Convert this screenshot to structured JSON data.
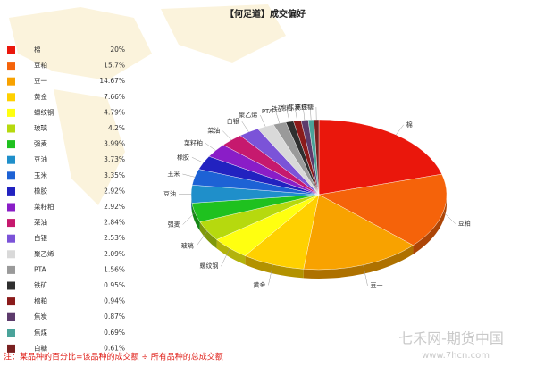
{
  "chart_data": {
    "type": "pie",
    "title": "【何足道】成交偏好",
    "categories": [
      "棉",
      "豆粕",
      "豆一",
      "黄金",
      "螺纹钢",
      "玻璃",
      "强麦",
      "豆油",
      "玉米",
      "橡胶",
      "菜籽粕",
      "菜油",
      "白银",
      "聚乙烯",
      "PTA",
      "铁矿",
      "棉粕",
      "焦炭",
      "焦煤",
      "白糖"
    ],
    "values": [
      20,
      15.7,
      14.67,
      7.66,
      4.79,
      4.2,
      3.99,
      3.73,
      3.35,
      2.92,
      2.92,
      2.84,
      2.53,
      2.09,
      1.56,
      0.95,
      0.94,
      0.87,
      0.69,
      0.61
    ],
    "value_labels": [
      "20%",
      "15.7%",
      "14.67%",
      "7.66%",
      "4.79%",
      "4.2%",
      "3.99%",
      "3.73%",
      "3.35%",
      "2.92%",
      "2.92%",
      "2.84%",
      "2.53%",
      "2.09%",
      "1.56%",
      "0.95%",
      "0.94%",
      "0.87%",
      "0.69%",
      "0.61%"
    ],
    "colors": [
      "#ea170c",
      "#f5630a",
      "#f8a200",
      "#ffd000",
      "#ffff10",
      "#b6d90e",
      "#1fc11f",
      "#1f8fca",
      "#1d62d5",
      "#2222c0",
      "#8a1dc7",
      "#c6196e",
      "#7b53d8",
      "#d9d9d9",
      "#9a9a9a",
      "#2f2f2f",
      "#8b1b1b",
      "#5d3b6c",
      "#4aa39a",
      "#7a2121"
    ],
    "footnote": "注：某品种的百分比=该品种的成交额 ÷ 所有品种的总成交额",
    "watermark": "七禾网-期货中国",
    "watermark_url": "www.7hcn.com"
  }
}
